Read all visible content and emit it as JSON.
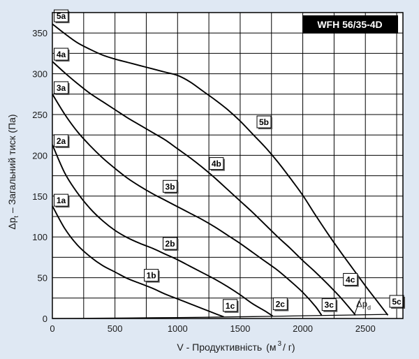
{
  "chart_data": {
    "type": "line",
    "title": "WFH 56/35-4D",
    "xlabel_main": "V - Продуктивність",
    "xlabel_unit_open": "(м",
    "xlabel_unit_sup": "3",
    "xlabel_unit_close": "/ г)",
    "ylabel_main": "Δp",
    "ylabel_sub": "t",
    "ylabel_rest": " – Загальний тиск (Па)",
    "xlim": [
      0,
      2800
    ],
    "ylim": [
      0,
      375
    ],
    "grid": true,
    "x_ticks": [
      0,
      500,
      1000,
      1500,
      2000,
      2500
    ],
    "y_ticks": [
      0,
      50,
      100,
      150,
      200,
      250,
      300,
      350
    ],
    "series": [
      {
        "name": "1",
        "points": [
          [
            0,
            138
          ],
          [
            100,
            110
          ],
          [
            200,
            90
          ],
          [
            300,
            76
          ],
          [
            400,
            65
          ],
          [
            500,
            57
          ],
          [
            600,
            49
          ],
          [
            700,
            43
          ],
          [
            800,
            37
          ],
          [
            900,
            30
          ],
          [
            1000,
            24
          ],
          [
            1100,
            18
          ],
          [
            1200,
            12
          ],
          [
            1300,
            6
          ],
          [
            1370,
            2
          ]
        ]
      },
      {
        "name": "2",
        "points": [
          [
            0,
            213
          ],
          [
            100,
            178
          ],
          [
            200,
            154
          ],
          [
            300,
            135
          ],
          [
            400,
            120
          ],
          [
            500,
            108
          ],
          [
            600,
            99
          ],
          [
            700,
            92
          ],
          [
            800,
            86
          ],
          [
            900,
            79
          ],
          [
            1000,
            72
          ],
          [
            1100,
            64
          ],
          [
            1200,
            56
          ],
          [
            1300,
            48
          ],
          [
            1400,
            39
          ],
          [
            1500,
            29
          ],
          [
            1600,
            18
          ],
          [
            1700,
            9
          ],
          [
            1760,
            3
          ]
        ]
      },
      {
        "name": "3",
        "points": [
          [
            0,
            275
          ],
          [
            100,
            250
          ],
          [
            200,
            229
          ],
          [
            300,
            212
          ],
          [
            400,
            197
          ],
          [
            500,
            184
          ],
          [
            600,
            172
          ],
          [
            700,
            162
          ],
          [
            800,
            153
          ],
          [
            900,
            145
          ],
          [
            1000,
            137
          ],
          [
            1100,
            129
          ],
          [
            1200,
            121
          ],
          [
            1300,
            112
          ],
          [
            1400,
            102
          ],
          [
            1500,
            92
          ],
          [
            1600,
            81
          ],
          [
            1700,
            70
          ],
          [
            1800,
            59
          ],
          [
            1900,
            46
          ],
          [
            2000,
            32
          ],
          [
            2100,
            15
          ],
          [
            2150,
            4
          ]
        ]
      },
      {
        "name": "4",
        "points": [
          [
            0,
            315
          ],
          [
            100,
            301
          ],
          [
            200,
            288
          ],
          [
            300,
            276
          ],
          [
            400,
            266
          ],
          [
            500,
            256
          ],
          [
            600,
            246
          ],
          [
            700,
            237
          ],
          [
            800,
            228
          ],
          [
            900,
            219
          ],
          [
            1000,
            208
          ],
          [
            1100,
            197
          ],
          [
            1200,
            185
          ],
          [
            1300,
            172
          ],
          [
            1400,
            158
          ],
          [
            1500,
            144
          ],
          [
            1600,
            130
          ],
          [
            1700,
            115
          ],
          [
            1800,
            100
          ],
          [
            1900,
            86
          ],
          [
            2000,
            71
          ],
          [
            2100,
            57
          ],
          [
            2200,
            42
          ],
          [
            2300,
            26
          ],
          [
            2400,
            8
          ],
          [
            2420,
            4
          ]
        ]
      },
      {
        "name": "5",
        "points": [
          [
            0,
            361
          ],
          [
            100,
            349
          ],
          [
            200,
            338
          ],
          [
            300,
            330
          ],
          [
            400,
            323
          ],
          [
            500,
            318
          ],
          [
            600,
            314
          ],
          [
            700,
            310
          ],
          [
            800,
            306
          ],
          [
            900,
            302
          ],
          [
            1000,
            298
          ],
          [
            1100,
            290
          ],
          [
            1200,
            279
          ],
          [
            1300,
            268
          ],
          [
            1400,
            256
          ],
          [
            1500,
            242
          ],
          [
            1600,
            226
          ],
          [
            1700,
            210
          ],
          [
            1800,
            192
          ],
          [
            1900,
            172
          ],
          [
            2000,
            151
          ],
          [
            2100,
            127
          ],
          [
            2200,
            104
          ],
          [
            2300,
            82
          ],
          [
            2400,
            61
          ],
          [
            2500,
            40
          ],
          [
            2600,
            20
          ],
          [
            2680,
            4
          ]
        ]
      },
      {
        "name": "Δp_d",
        "points": [
          [
            0,
            0
          ],
          [
            400,
            0.4
          ],
          [
            800,
            0.9
          ],
          [
            1200,
            1.5
          ],
          [
            1600,
            2.3
          ],
          [
            2000,
            3.3
          ],
          [
            2400,
            4.3
          ],
          [
            2680,
            5
          ]
        ]
      }
    ],
    "curve_labels": [
      {
        "text": "5a",
        "x": 70,
        "y": 371
      },
      {
        "text": "4a",
        "x": 70,
        "y": 324
      },
      {
        "text": "3a",
        "x": 70,
        "y": 283
      },
      {
        "text": "2a",
        "x": 70,
        "y": 218
      },
      {
        "text": "1a",
        "x": 70,
        "y": 145
      },
      {
        "text": "5b",
        "x": 1690,
        "y": 241
      },
      {
        "text": "4b",
        "x": 1310,
        "y": 190
      },
      {
        "text": "3b",
        "x": 940,
        "y": 162
      },
      {
        "text": "2b",
        "x": 940,
        "y": 92
      },
      {
        "text": "1b",
        "x": 790,
        "y": 53
      },
      {
        "text": "1c",
        "x": 1420,
        "y": 16
      },
      {
        "text": "2c",
        "x": 1820,
        "y": 18
      },
      {
        "text": "3c",
        "x": 2210,
        "y": 17
      },
      {
        "text": "4c",
        "x": 2380,
        "y": 48
      },
      {
        "text": "5c",
        "x": 2750,
        "y": 21
      }
    ],
    "dp_label": {
      "main": "Δp",
      "sub": "d",
      "x": 2485,
      "y": 14
    }
  }
}
